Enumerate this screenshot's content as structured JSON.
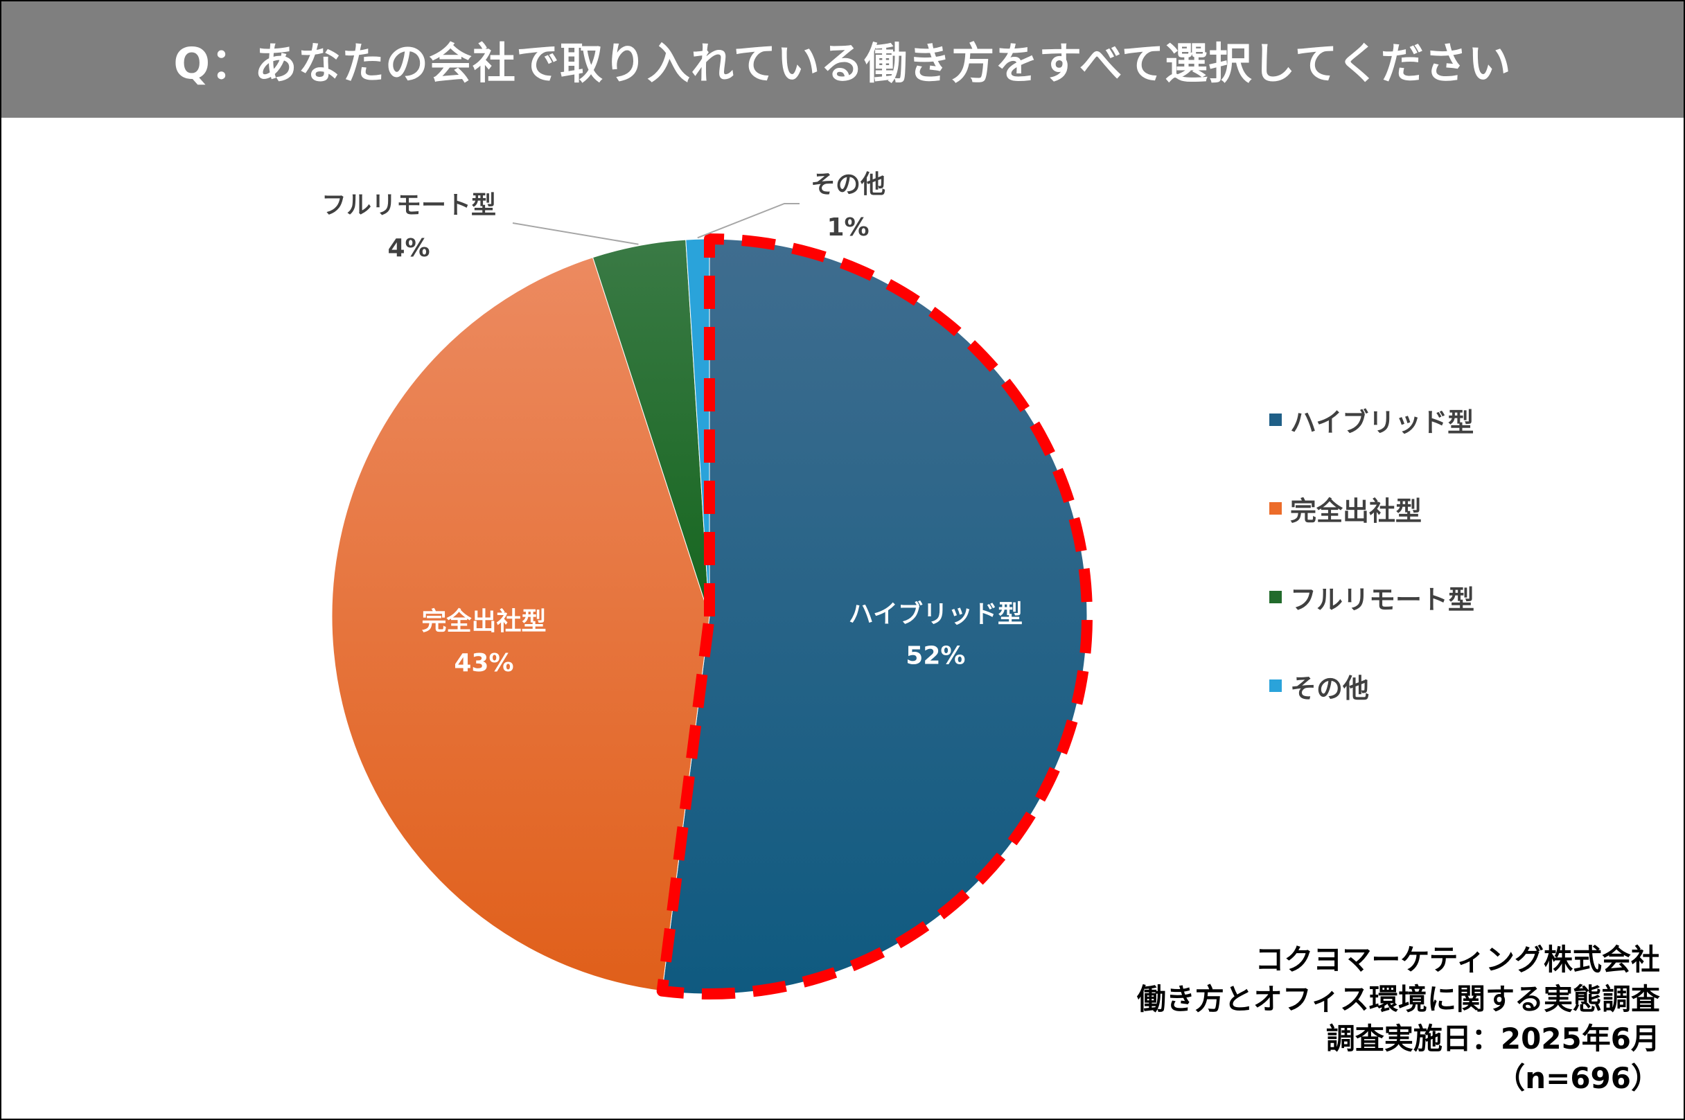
{
  "title": "Q：あなたの会社で取り入れている働き方をすべて選択してください",
  "chart_data": {
    "type": "pie",
    "categories": [
      "ハイブリッド型",
      "完全出社型",
      "フルリモート型",
      "その他"
    ],
    "values": [
      52,
      43,
      4,
      1
    ],
    "value_labels": [
      "52%",
      "43%",
      "4%",
      "1%"
    ],
    "colors": [
      "#1f5f87",
      "#ec6c2a",
      "#226b2c",
      "#2aa3da"
    ],
    "highlight": "ハイブリッド型",
    "highlight_color": "#ff0000",
    "legend_placement": "right"
  },
  "legend": [
    {
      "label": "ハイブリッド型",
      "color": "#1f5f87"
    },
    {
      "label": "完全出社型",
      "color": "#ec6c2a"
    },
    {
      "label": "フルリモート型",
      "color": "#226b2c"
    },
    {
      "label": "その他",
      "color": "#2aa3da"
    }
  ],
  "footer": {
    "line1": "コクヨマーケティング株式会社",
    "line2": "働き方とオフィス環境に関する実態調査",
    "line3": "調査実施日：2025年6月",
    "line4": "（n=696）"
  }
}
